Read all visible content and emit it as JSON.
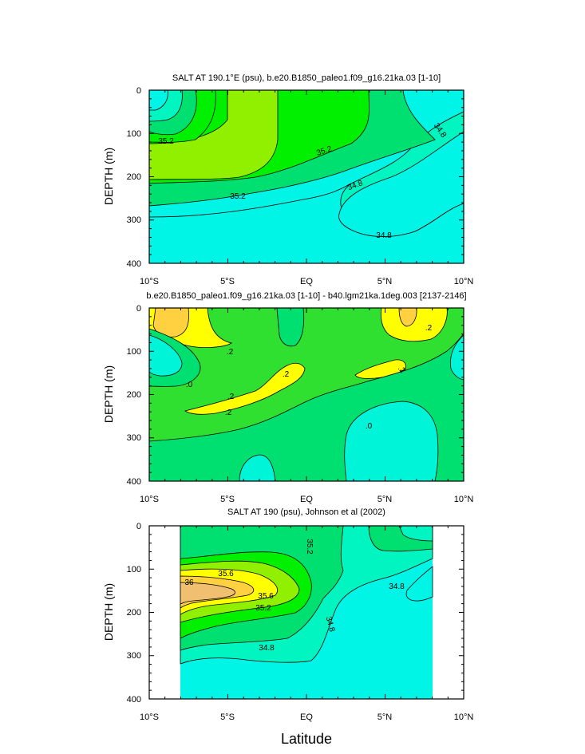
{
  "figure": {
    "xlabel": "Latitude"
  },
  "chart_data": [
    {
      "type": "contour",
      "title": "SALT AT 190.1°E (psu), b.e20.B1850_paleo1.f09_g16.21ka.03 [1-10]",
      "ylabel": "DEPTH (m)",
      "xlabel": "",
      "xlim": [
        -10,
        10
      ],
      "ylim": [
        400,
        0
      ],
      "x_ticks": [
        "10°S",
        "5°S",
        "EQ",
        "5°N",
        "10°N"
      ],
      "y_ticks": [
        "0",
        "100",
        "200",
        "300",
        "400"
      ],
      "contour_labels": [
        "35.2",
        "35.2",
        "35.2",
        "34.8",
        "34.8",
        "34.8"
      ],
      "colors": {
        "cyan": "#00f5e6",
        "aqua": "#00f5c0",
        "mint": "#00e070",
        "green": "#00f000",
        "lime": "#90f000"
      }
    },
    {
      "type": "contour",
      "title": "b.e20.B1850_paleo1.f09_g16.21ka.03 [1-10] - b40.lgm21ka.1deg.003 [2137-2146]",
      "ylabel": "DEPTH (m)",
      "xlabel": "",
      "xlim": [
        -10,
        10
      ],
      "ylim": [
        400,
        0
      ],
      "x_ticks": [
        "10°S",
        "5°S",
        "EQ",
        "5°N",
        "10°N"
      ],
      "y_ticks": [
        "0",
        "100",
        "200",
        "300",
        "400"
      ],
      "contour_labels": [
        ".2",
        ".2",
        ".2",
        ".2",
        ".2",
        ".2",
        ".0",
        ".0"
      ],
      "colors": {
        "orange": "#ffd040",
        "yellow": "#ffff00",
        "green": "#30e030",
        "mint": "#00e070",
        "cyan": "#00f5d8"
      }
    },
    {
      "type": "contour",
      "title": "SALT AT 190 (psu), Johnson et al (2002)",
      "ylabel": "DEPTH (m)",
      "xlabel": "",
      "xlim": [
        -10,
        10
      ],
      "ylim": [
        400,
        0
      ],
      "x_ticks": [
        "10°S",
        "5°S",
        "EQ",
        "5°N",
        "10°N"
      ],
      "y_ticks": [
        "0",
        "100",
        "200",
        "300",
        "400"
      ],
      "data_extent_lat": [
        -8,
        8
      ],
      "contour_labels": [
        "35.2",
        "35.6",
        "36",
        "35.6",
        "35.2",
        "34.8",
        "34.8",
        "34.8"
      ],
      "colors": {
        "cyan": "#00f5e6",
        "aqua": "#00f5c0",
        "mint": "#00e070",
        "green": "#00f000",
        "lime": "#90f000",
        "yellow": "#ffff00",
        "orange": "#ffd040",
        "tan": "#f0c070"
      }
    }
  ]
}
